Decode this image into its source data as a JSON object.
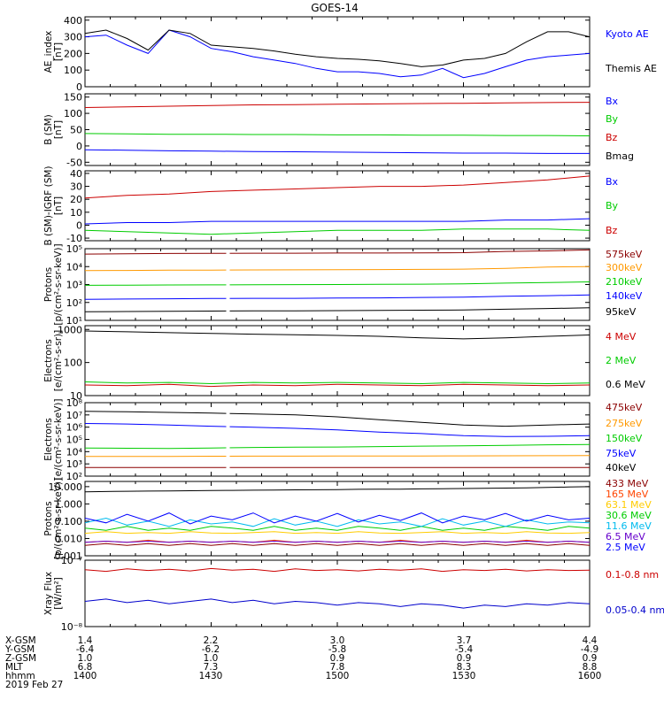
{
  "title": "GOES-14",
  "footer": {
    "row_labels": [
      "X-GSM",
      "Y-GSM",
      "Z-GSM",
      "MLT",
      "hhmm",
      "2019 Feb 27"
    ],
    "columns": [
      {
        "x": "1.4",
        "y": "-6.4",
        "z": "1.0",
        "mlt": "6.8",
        "hhmm": "1400"
      },
      {
        "x": "2.2",
        "y": "-6.2",
        "z": "1.0",
        "mlt": "7.3",
        "hhmm": "1430"
      },
      {
        "x": "3.0",
        "y": "-5.8",
        "z": "0.9",
        "mlt": "7.8",
        "hhmm": "1500"
      },
      {
        "x": "3.7",
        "y": "-5.4",
        "z": "0.9",
        "mlt": "8.3",
        "hhmm": "1530"
      },
      {
        "x": "4.4",
        "y": "-4.9",
        "z": "0.9",
        "mlt": "8.8",
        "hhmm": "1600"
      }
    ]
  },
  "chart_data": [
    {
      "type": "line",
      "scale": "linear",
      "ylabel": [
        "AE_index",
        "[nT]"
      ],
      "ylim": [
        0,
        420
      ],
      "yticks": [
        0,
        100,
        200,
        300,
        400
      ],
      "ytick_labels": [
        "0",
        "100",
        "200",
        "300",
        "400"
      ],
      "x_minutes": [
        0,
        5,
        10,
        15,
        20,
        25,
        30,
        35,
        40,
        45,
        50,
        55,
        60,
        65,
        70,
        75,
        80,
        85,
        90,
        95,
        100,
        105,
        110,
        115,
        120
      ],
      "series": [
        {
          "name": "Kyoto AE",
          "color": "#0000ff",
          "values": [
            300,
            310,
            250,
            200,
            340,
            300,
            230,
            210,
            180,
            160,
            140,
            110,
            90,
            90,
            80,
            60,
            70,
            110,
            55,
            80,
            120,
            160,
            180,
            190,
            200
          ]
        },
        {
          "name": "Themis AE",
          "color": "#000000",
          "values": [
            320,
            340,
            290,
            220,
            340,
            320,
            250,
            240,
            230,
            215,
            195,
            180,
            170,
            165,
            155,
            140,
            120,
            130,
            160,
            170,
            200,
            270,
            330,
            330,
            300
          ]
        }
      ]
    },
    {
      "type": "line",
      "scale": "linear",
      "ylabel": [
        "B (SM)",
        "[nT]"
      ],
      "ylim": [
        -60,
        160
      ],
      "yticks": [
        -50,
        0,
        50,
        100,
        150
      ],
      "ytick_labels": [
        "-50",
        "0",
        "50",
        "100",
        "150"
      ],
      "x_minutes": [
        0,
        10,
        20,
        30,
        40,
        50,
        60,
        70,
        80,
        90,
        100,
        110,
        120
      ],
      "series": [
        {
          "name": "Bx",
          "color": "#0000ff",
          "values": [
            -12,
            -13,
            -15,
            -16,
            -17,
            -18,
            -19,
            -20,
            -21,
            -22,
            -22,
            -23,
            -23
          ]
        },
        {
          "name": "By",
          "color": "#00cc00",
          "values": [
            38,
            37,
            36,
            36,
            35,
            35,
            34,
            34,
            33,
            33,
            32,
            32,
            31
          ]
        },
        {
          "name": "Bz",
          "color": "#cc0000",
          "values": [
            118,
            120,
            122,
            124,
            126,
            127,
            128,
            129,
            130,
            131,
            132,
            133,
            134
          ]
        },
        {
          "name": "Bmag",
          "color": "#000000",
          "values": []
        }
      ]
    },
    {
      "type": "line",
      "scale": "linear",
      "ylabel": [
        "B (SM)-IGRF (SM)",
        "[nT]"
      ],
      "ylim": [
        -12,
        42
      ],
      "yticks": [
        -10,
        0,
        10,
        20,
        30,
        40
      ],
      "ytick_labels": [
        "-10",
        "0",
        "10",
        "20",
        "30",
        "40"
      ],
      "x_minutes": [
        0,
        10,
        20,
        30,
        40,
        50,
        60,
        70,
        80,
        90,
        100,
        110,
        120
      ],
      "series": [
        {
          "name": "Bx",
          "color": "#0000ff",
          "values": [
            1,
            2,
            2,
            3,
            3,
            3,
            3,
            3,
            3,
            3,
            4,
            4,
            5
          ]
        },
        {
          "name": "By",
          "color": "#00cc00",
          "values": [
            -4,
            -5,
            -6,
            -7,
            -6,
            -5,
            -4,
            -4,
            -4,
            -3,
            -3,
            -3,
            -4
          ]
        },
        {
          "name": "Bz",
          "color": "#cc0000",
          "values": [
            21,
            23,
            24,
            26,
            27,
            28,
            29,
            30,
            30,
            31,
            33,
            35,
            38
          ]
        }
      ]
    },
    {
      "type": "line",
      "scale": "log",
      "ylabel": [
        "Protons",
        "[p/(cm²-s-sr-keV)]"
      ],
      "ylim": [
        10,
        100000
      ],
      "yticks": [
        10,
        100,
        1000,
        10000,
        100000
      ],
      "ytick_labels": [
        "10¹",
        "10²",
        "10³",
        "10⁴",
        "10⁵"
      ],
      "data_gap_minutes": [
        33,
        35
      ],
      "x_minutes": [
        0,
        10,
        20,
        30,
        40,
        50,
        60,
        70,
        80,
        90,
        100,
        110,
        120
      ],
      "series": [
        {
          "name": "575keV",
          "color": "#8b0000",
          "values": [
            50000,
            52000,
            54000,
            55000,
            56000,
            56000,
            57000,
            57000,
            58000,
            60000,
            70000,
            75000,
            85000
          ]
        },
        {
          "name": "300keV",
          "color": "#ff9900",
          "values": [
            6000,
            6100,
            6300,
            6400,
            6500,
            6600,
            6700,
            6800,
            7000,
            7200,
            8000,
            9500,
            10000
          ]
        },
        {
          "name": "210keV",
          "color": "#00cc00",
          "values": [
            900,
            920,
            940,
            960,
            980,
            990,
            1000,
            1020,
            1050,
            1100,
            1200,
            1300,
            1400
          ]
        },
        {
          "name": "140keV",
          "color": "#0000ff",
          "values": [
            150,
            155,
            160,
            165,
            170,
            170,
            175,
            180,
            190,
            200,
            220,
            240,
            260
          ]
        },
        {
          "name": "95keV",
          "color": "#000000",
          "values": [
            30,
            31,
            32,
            33,
            34,
            34,
            35,
            36,
            37,
            38,
            42,
            46,
            50
          ]
        }
      ]
    },
    {
      "type": "line",
      "scale": "log",
      "ylabel": [
        "Electrons",
        "[e/(cm²-s-sr)]"
      ],
      "ylim": [
        10,
        1300
      ],
      "yticks": [
        10,
        100,
        1000
      ],
      "ytick_labels": [
        "10",
        "100",
        "1000"
      ],
      "x_minutes": [
        0,
        10,
        20,
        30,
        40,
        50,
        60,
        70,
        80,
        90,
        100,
        110,
        120
      ],
      "series": [
        {
          "name": "4 MeV",
          "color": "#cc0000",
          "values": [
            21,
            20,
            22,
            19,
            21,
            20,
            22,
            21,
            20,
            22,
            21,
            20,
            21
          ]
        },
        {
          "name": "2 MeV",
          "color": "#00cc00",
          "values": [
            26,
            24,
            25,
            23,
            25,
            24,
            25,
            24,
            23,
            25,
            24,
            23,
            24
          ]
        },
        {
          "name": "0.6 MeV",
          "color": "#000000",
          "values": [
            900,
            850,
            800,
            760,
            720,
            690,
            660,
            620,
            560,
            520,
            560,
            620,
            680
          ]
        }
      ]
    },
    {
      "type": "line",
      "scale": "log",
      "ylabel": [
        "Electrons",
        "[e/(cm²-s-sr-keV)]"
      ],
      "ylim": [
        100,
        100000000
      ],
      "yticks": [
        100,
        1000,
        10000,
        100000,
        1000000,
        10000000,
        100000000
      ],
      "ytick_labels": [
        "10²",
        "10³",
        "10⁴",
        "10⁵",
        "10⁶",
        "10⁷",
        "10⁸"
      ],
      "data_gap_minutes": [
        33,
        35
      ],
      "x_minutes": [
        0,
        10,
        20,
        30,
        40,
        50,
        60,
        70,
        80,
        90,
        100,
        110,
        120
      ],
      "series": [
        {
          "name": "475keV",
          "color": "#8b0000",
          "values": [
            500,
            500,
            500,
            500,
            500,
            500,
            500,
            500,
            500,
            500,
            500,
            500,
            500
          ]
        },
        {
          "name": "275keV",
          "color": "#ff9900",
          "values": [
            4000,
            4000,
            4000,
            4200,
            4300,
            4300,
            4400,
            4400,
            4400,
            4500,
            4600,
            4700,
            4800
          ]
        },
        {
          "name": "150keV",
          "color": "#00cc00",
          "values": [
            20000,
            19000,
            18000,
            20000,
            22000,
            23000,
            24000,
            26000,
            28000,
            30000,
            33000,
            36000,
            38000
          ]
        },
        {
          "name": "75keV",
          "color": "#0000ff",
          "values": [
            2000000,
            1800000,
            1500000,
            1200000,
            1000000,
            800000,
            600000,
            400000,
            300000,
            200000,
            170000,
            180000,
            200000
          ]
        },
        {
          "name": "40keV",
          "color": "#000000",
          "values": [
            20000000,
            18000000,
            16000000,
            14000000,
            12000000,
            10000000,
            7000000,
            4000000,
            2500000,
            1500000,
            1200000,
            1500000,
            1800000
          ]
        }
      ]
    },
    {
      "type": "line",
      "scale": "log",
      "ylabel": [
        "Protons",
        "[p/(cm²-s-sr-keV)]"
      ],
      "ylim": [
        0.001,
        20
      ],
      "yticks": [
        0.001,
        0.01,
        0.1,
        1,
        10
      ],
      "ytick_labels": [
        "0.001",
        "0.010",
        "0.100",
        "1.000",
        "10.000"
      ],
      "x_minutes": [
        0,
        5,
        10,
        15,
        20,
        25,
        30,
        35,
        40,
        45,
        50,
        55,
        60,
        65,
        70,
        75,
        80,
        85,
        90,
        95,
        100,
        105,
        110,
        115,
        120
      ],
      "series": [
        {
          "name": "433 MeV",
          "color": "#8b0000",
          "values": [
            0.004,
            0.005,
            0.004,
            0.005,
            0.004,
            0.005,
            0.004,
            0.005,
            0.004,
            0.005,
            0.004,
            0.005,
            0.004,
            0.005,
            0.004,
            0.005,
            0.004,
            0.005,
            0.004,
            0.005,
            0.004,
            0.005,
            0.004,
            0.005,
            0.004
          ]
        },
        {
          "name": "165 MeV",
          "color": "#ff4400",
          "values": [
            0.006,
            0.007,
            0.006,
            0.008,
            0.006,
            0.007,
            0.006,
            0.007,
            0.006,
            0.008,
            0.006,
            0.007,
            0.006,
            0.007,
            0.006,
            0.008,
            0.006,
            0.007,
            0.006,
            0.007,
            0.006,
            0.008,
            0.006,
            0.007,
            0.006
          ]
        },
        {
          "name": "63.1 MeV",
          "color": "#ffcc00",
          "values": [
            0.02,
            0.025,
            0.02,
            0.022,
            0.02,
            0.025,
            0.021,
            0.02,
            0.022,
            0.025,
            0.02,
            0.022,
            0.02,
            0.025,
            0.021,
            0.02,
            0.022,
            0.025,
            0.02,
            0.022,
            0.02,
            0.025,
            0.021,
            0.02,
            0.022
          ]
        },
        {
          "name": "30.6 MeV",
          "color": "#00cc00",
          "values": [
            0.04,
            0.03,
            0.05,
            0.03,
            0.04,
            0.03,
            0.05,
            0.04,
            0.03,
            0.05,
            0.03,
            0.04,
            0.03,
            0.05,
            0.04,
            0.03,
            0.05,
            0.03,
            0.04,
            0.03,
            0.05,
            0.04,
            0.03,
            0.05,
            0.04
          ]
        },
        {
          "name": "11.6 MeV",
          "color": "#00bbee",
          "values": [
            0.08,
            0.15,
            0.06,
            0.1,
            0.05,
            0.12,
            0.07,
            0.09,
            0.05,
            0.14,
            0.06,
            0.1,
            0.05,
            0.12,
            0.07,
            0.09,
            0.05,
            0.14,
            0.06,
            0.1,
            0.05,
            0.12,
            0.07,
            0.09,
            0.08
          ]
        },
        {
          "name": "6.5 MeV",
          "color": "#6600cc",
          "values": [
            0.006,
            0.007,
            0.006,
            0.007,
            0.006,
            0.007,
            0.006,
            0.007,
            0.006,
            0.007,
            0.006,
            0.007,
            0.006,
            0.007,
            0.006,
            0.007,
            0.006,
            0.007,
            0.006,
            0.007,
            0.006,
            0.007,
            0.006,
            0.007,
            0.006
          ]
        },
        {
          "name": "2.5 MeV",
          "color": "#0000ff",
          "values": [
            0.15,
            0.08,
            0.25,
            0.1,
            0.3,
            0.07,
            0.2,
            0.12,
            0.3,
            0.08,
            0.2,
            0.1,
            0.28,
            0.09,
            0.22,
            0.11,
            0.3,
            0.08,
            0.2,
            0.12,
            0.28,
            0.1,
            0.22,
            0.12,
            0.15
          ]
        },
        {
          "name": "",
          "color": "#000000",
          "values": [
            5,
            5.2,
            5.4,
            5.5,
            5.6,
            5.8,
            6,
            6.1,
            6.2,
            6.4,
            6.5,
            6.6,
            6.8,
            7,
            7.1,
            7.2,
            7.4,
            7.6,
            7.8,
            8,
            8.3,
            8.6,
            9,
            9.5,
            10
          ]
        }
      ]
    },
    {
      "type": "line",
      "scale": "log",
      "ylabel": [
        "Xray Flux",
        "[W/m²]"
      ],
      "ylim": [
        1e-08,
        1e-07
      ],
      "yticks": [
        1e-08,
        1e-07
      ],
      "ytick_labels": [
        "10⁻⁸",
        "10⁻⁷"
      ],
      "x_minutes": [
        0,
        5,
        10,
        15,
        20,
        25,
        30,
        35,
        40,
        45,
        50,
        55,
        60,
        65,
        70,
        75,
        80,
        85,
        90,
        95,
        100,
        105,
        110,
        115,
        120
      ],
      "series": [
        {
          "name": "0.1-0.8 nm",
          "color": "#cc0000",
          "values": [
            7.2e-08,
            6.8e-08,
            7.4e-08,
            7e-08,
            7.3e-08,
            6.9e-08,
            7.5e-08,
            7.1e-08,
            7.3e-08,
            6.8e-08,
            7.4e-08,
            7e-08,
            7.2e-08,
            6.9e-08,
            7.3e-08,
            7.1e-08,
            7.4e-08,
            6.8e-08,
            7.2e-08,
            7e-08,
            7.3e-08,
            6.9e-08,
            7.2e-08,
            7e-08,
            7.1e-08
          ]
        },
        {
          "name": "0.05-0.4 nm",
          "color": "#0000cc",
          "values": [
            2.4e-08,
            2.6e-08,
            2.3e-08,
            2.5e-08,
            2.2e-08,
            2.4e-08,
            2.6e-08,
            2.3e-08,
            2.5e-08,
            2.2e-08,
            2.4e-08,
            2.3e-08,
            2.1e-08,
            2.3e-08,
            2.2e-08,
            2e-08,
            2.2e-08,
            2.1e-08,
            1.9e-08,
            2.1e-08,
            2e-08,
            2.2e-08,
            2.1e-08,
            2.3e-08,
            2.2e-08
          ]
        }
      ]
    }
  ]
}
